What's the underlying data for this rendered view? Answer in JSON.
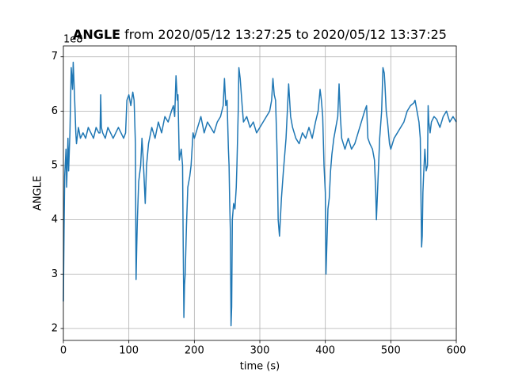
{
  "chart_data": {
    "type": "line",
    "title": [
      "ANGLE",
      "from 2020/05/12 13:27:25 to 2020/05/12 13:37:25"
    ],
    "offset_label": "1e8",
    "xlabel": "time (s)",
    "ylabel": "ANGLE",
    "color": "#1f77b4",
    "grid": true,
    "xlim": [
      0,
      600
    ],
    "ylim": [
      1.78,
      7.2
    ],
    "xticks": [
      0,
      100,
      200,
      300,
      400,
      500,
      600
    ],
    "yticks": [
      2,
      3,
      4,
      5,
      6,
      7
    ],
    "x": [
      0,
      1,
      2,
      4,
      5,
      7,
      8,
      10,
      12,
      14,
      15,
      17,
      19,
      20,
      23,
      26,
      30,
      34,
      38,
      42,
      46,
      50,
      54,
      56,
      57,
      58,
      60,
      64,
      68,
      72,
      76,
      80,
      84,
      88,
      92,
      95,
      97,
      100,
      103,
      106,
      108,
      110,
      111,
      112,
      113,
      115,
      118,
      120,
      122,
      125,
      127,
      130,
      135,
      140,
      145,
      150,
      155,
      160,
      165,
      168,
      170,
      172,
      174,
      175,
      177,
      180,
      182,
      183,
      184,
      185,
      186,
      188,
      190,
      193,
      195,
      198,
      200,
      205,
      210,
      215,
      220,
      225,
      230,
      235,
      240,
      244,
      246,
      248,
      250,
      252,
      253,
      254,
      255,
      256,
      257,
      258,
      260,
      262,
      264,
      265,
      267,
      268,
      270,
      273,
      275,
      280,
      285,
      290,
      295,
      300,
      305,
      310,
      315,
      318,
      320,
      322,
      324,
      326,
      327,
      328,
      330,
      333,
      336,
      340,
      342,
      344,
      347,
      350,
      355,
      360,
      365,
      370,
      375,
      380,
      385,
      389,
      392,
      394,
      396,
      398,
      400,
      401,
      402,
      404,
      406,
      408,
      410,
      413,
      416,
      419,
      421,
      423,
      425,
      430,
      435,
      440,
      445,
      450,
      455,
      460,
      463,
      465,
      468,
      472,
      475,
      477,
      478,
      480,
      483,
      486,
      488,
      490,
      491,
      493,
      495,
      498,
      500,
      505,
      510,
      515,
      520,
      525,
      530,
      535,
      537,
      540,
      543,
      545,
      547,
      548,
      549,
      550,
      552,
      554,
      556,
      557,
      558,
      560,
      562,
      566,
      570,
      575,
      580,
      585,
      590,
      595,
      600
    ],
    "values": [
      2.5,
      3.8,
      4.8,
      5.3,
      4.6,
      5.5,
      4.9,
      5.6,
      6.8,
      6.4,
      6.9,
      6.3,
      5.6,
      5.4,
      5.7,
      5.5,
      5.6,
      5.5,
      5.7,
      5.6,
      5.5,
      5.7,
      5.6,
      5.6,
      6.3,
      5.7,
      5.6,
      5.5,
      5.7,
      5.6,
      5.5,
      5.6,
      5.7,
      5.6,
      5.5,
      5.6,
      6.2,
      6.3,
      6.1,
      6.35,
      6.2,
      5.4,
      2.9,
      3.5,
      4.0,
      4.7,
      5.0,
      5.5,
      5.1,
      4.3,
      5.0,
      5.4,
      5.7,
      5.5,
      5.8,
      5.6,
      5.9,
      5.8,
      6.0,
      6.1,
      5.9,
      6.65,
      6.2,
      6.3,
      5.1,
      5.3,
      5.0,
      3.5,
      2.2,
      2.8,
      3.0,
      3.9,
      4.6,
      4.8,
      5.0,
      5.6,
      5.5,
      5.7,
      5.9,
      5.6,
      5.8,
      5.7,
      5.6,
      5.8,
      5.9,
      6.1,
      6.6,
      6.1,
      6.2,
      5.3,
      5.0,
      4.3,
      3.8,
      2.05,
      2.4,
      4.0,
      4.3,
      4.2,
      4.6,
      5.0,
      6.0,
      6.8,
      6.6,
      6.1,
      5.8,
      5.9,
      5.7,
      5.8,
      5.6,
      5.7,
      5.8,
      5.9,
      6.0,
      6.2,
      6.6,
      6.3,
      6.2,
      5.4,
      4.8,
      4.0,
      3.7,
      4.4,
      4.9,
      5.5,
      6.0,
      6.5,
      5.9,
      5.7,
      5.5,
      5.4,
      5.6,
      5.5,
      5.7,
      5.5,
      5.8,
      6.0,
      6.4,
      6.2,
      5.9,
      5.0,
      4.5,
      3.0,
      3.4,
      4.2,
      4.4,
      4.9,
      5.2,
      5.5,
      5.7,
      5.9,
      6.5,
      5.9,
      5.5,
      5.3,
      5.5,
      5.3,
      5.4,
      5.6,
      5.8,
      6.0,
      6.1,
      5.5,
      5.4,
      5.3,
      5.1,
      4.5,
      4.0,
      4.6,
      5.5,
      6.0,
      6.8,
      6.7,
      6.5,
      6.0,
      5.8,
      5.4,
      5.3,
      5.5,
      5.6,
      5.7,
      5.8,
      6.0,
      6.1,
      6.15,
      6.2,
      6.0,
      5.8,
      5.5,
      3.5,
      3.7,
      4.5,
      4.8,
      5.3,
      4.9,
      5.0,
      6.1,
      5.8,
      5.6,
      5.8,
      5.9,
      5.85,
      5.7,
      5.9,
      6.0,
      5.8,
      5.9,
      5.8
    ]
  }
}
